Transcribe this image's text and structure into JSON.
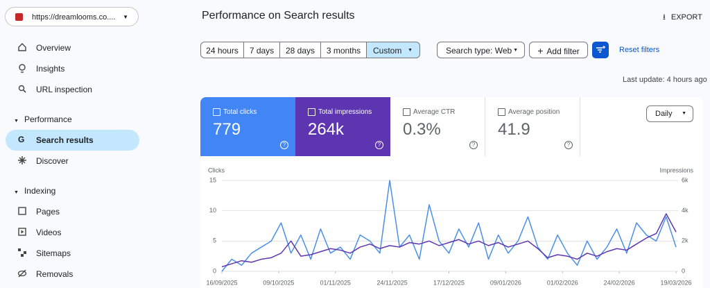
{
  "sidebar": {
    "property": "https://dreamlooms.co....",
    "items": [
      "Overview",
      "Insights",
      "URL inspection"
    ],
    "performance": {
      "heading": "Performance",
      "items": [
        "Search results",
        "Discover"
      ]
    },
    "indexing": {
      "heading": "Indexing",
      "items": [
        "Pages",
        "Videos",
        "Sitemaps",
        "Removals"
      ]
    }
  },
  "header": {
    "title": "Performance on Search results",
    "export": "EXPORT"
  },
  "filters": {
    "ranges": [
      "24 hours",
      "7 days",
      "28 days",
      "3 months",
      "Custom"
    ],
    "search_type": "Search type: Web",
    "add_filter": "Add filter",
    "reset": "Reset filters",
    "last_update": "Last update: 4 hours ago"
  },
  "metrics": [
    {
      "label": "Total clicks",
      "value": "779"
    },
    {
      "label": "Total impressions",
      "value": "264k"
    },
    {
      "label": "Average CTR",
      "value": "0.3%"
    },
    {
      "label": "Average position",
      "value": "41.9"
    }
  ],
  "granularity": "Daily",
  "chart_data": {
    "type": "line",
    "y_label": "Clicks",
    "y2_label": "Impressions",
    "x": [
      "16/09/2025",
      "20/09/2025",
      "24/09/2025",
      "28/09/2025",
      "02/10/2025",
      "06/10/2025",
      "10/10/2025",
      "14/10/2025",
      "18/10/2025",
      "22/10/2025",
      "26/10/2025",
      "30/10/2025",
      "03/11/2025",
      "07/11/2025",
      "11/11/2025",
      "15/11/2025",
      "19/11/2025",
      "23/11/2025",
      "27/11/2025",
      "01/12/2025",
      "05/12/2025",
      "09/12/2025",
      "13/12/2025",
      "17/12/2025",
      "21/12/2025",
      "25/12/2025",
      "29/12/2025",
      "02/01/2026",
      "06/01/2026",
      "10/01/2026",
      "14/01/2026",
      "18/01/2026",
      "22/01/2026",
      "26/01/2026",
      "30/01/2026",
      "03/02/2026",
      "07/02/2026",
      "11/02/2026",
      "15/02/2026",
      "19/02/2026",
      "23/02/2026",
      "27/02/2026",
      "03/03/2026",
      "07/03/2026",
      "11/03/2026",
      "15/03/2026",
      "19/03/2026"
    ],
    "xlim": [
      "16/09/2025",
      "19/03/2026"
    ],
    "xticks": [
      "16/09/2025",
      "09/10/2025",
      "01/11/2025",
      "24/11/2025",
      "17/12/2025",
      "09/01/2026",
      "01/02/2026",
      "24/02/2026",
      "19/03/2026"
    ],
    "ylim": [
      0,
      15
    ],
    "yticks": [
      0,
      5,
      10,
      15
    ],
    "y2lim": [
      0,
      6000
    ],
    "y2ticks": [
      0,
      {
        "value": 2000,
        "label": "2k"
      },
      {
        "value": 4000,
        "label": "4k"
      },
      {
        "value": 6000,
        "label": "6k"
      }
    ],
    "grid": true,
    "series": [
      {
        "name": "Clicks",
        "color": "#4a8fe7",
        "values": [
          0,
          2,
          1,
          3,
          4,
          5,
          8,
          3,
          6,
          2,
          7,
          3,
          4,
          2,
          6,
          5,
          3,
          15,
          4,
          6,
          2,
          11,
          5,
          3,
          7,
          4,
          8,
          2,
          6,
          3,
          5,
          9,
          4,
          2,
          6,
          3,
          1,
          5,
          2,
          4,
          7,
          3,
          8,
          6,
          5,
          9,
          4
        ]
      },
      {
        "name": "Impressions",
        "color": "#5e35b1",
        "axis": "y2",
        "values": [
          300,
          500,
          700,
          600,
          800,
          900,
          1200,
          2000,
          1000,
          1100,
          1300,
          1500,
          1400,
          1200,
          1600,
          1800,
          1500,
          1700,
          1600,
          1900,
          1800,
          2000,
          1700,
          1900,
          2100,
          1800,
          2000,
          1700,
          1900,
          1600,
          1800,
          2000,
          1500,
          900,
          1100,
          1000,
          800,
          1200,
          1000,
          1300,
          1500,
          1400,
          1800,
          2200,
          2500,
          3800,
          2600
        ]
      }
    ]
  }
}
